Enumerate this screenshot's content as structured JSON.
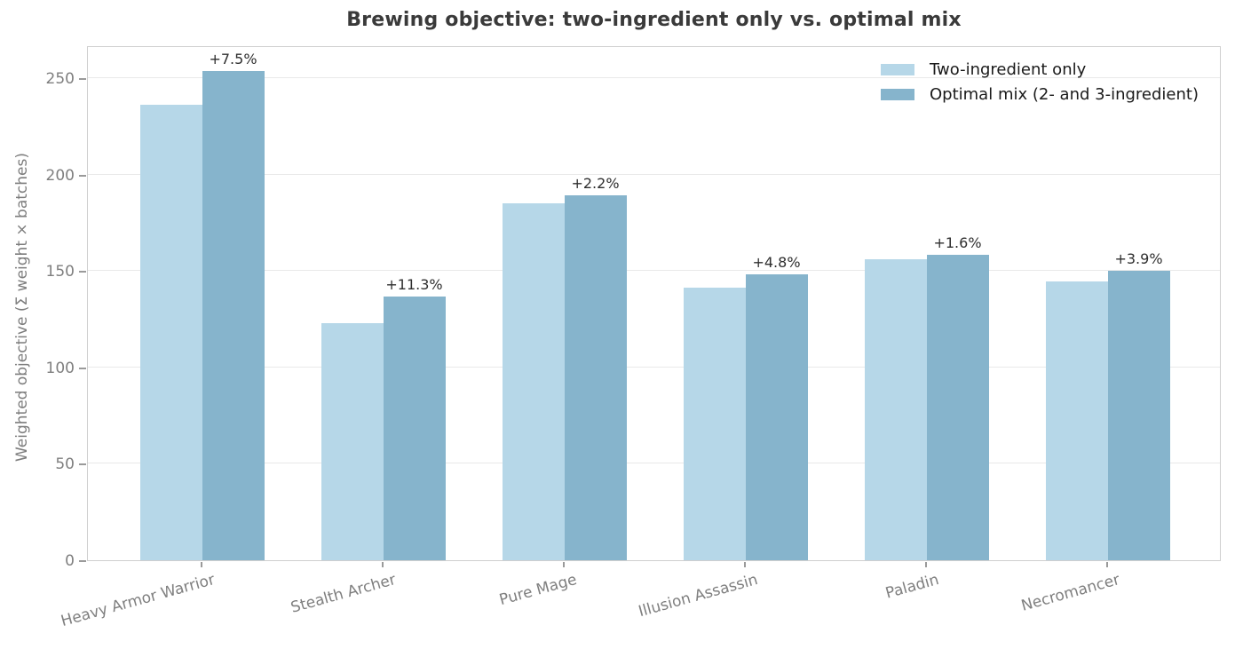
{
  "title": "Brewing objective: two-ingredient only vs. optimal mix",
  "chart_data": {
    "type": "bar",
    "title": "Brewing objective: two-ingredient only vs. optimal mix",
    "xlabel": "",
    "ylabel": "Weighted objective (Σ weight × batches)",
    "ylim": [
      0,
      267
    ],
    "yticks": [
      0,
      50,
      100,
      150,
      200,
      250
    ],
    "grid": "horizontal",
    "legend_position": "upper right",
    "categories": [
      "Heavy Armor Warrior",
      "Stealth Archer",
      "Pure Mage",
      "Illusion Assassin",
      "Paladin",
      "Necromancer"
    ],
    "series": [
      {
        "name": "Two-ingredient only",
        "color": "#b6d7e8",
        "values": [
          236,
          123,
          185,
          141.5,
          156,
          144.5
        ]
      },
      {
        "name": "Optimal mix (2- and 3-ingredient)",
        "color": "#86b4cc",
        "values": [
          253.7,
          136.9,
          189.1,
          148.3,
          158.5,
          150.1
        ]
      }
    ],
    "annotations": [
      "+7.5%",
      "+11.3%",
      "+2.2%",
      "+4.8%",
      "+1.6%",
      "+3.9%"
    ]
  },
  "colors": {
    "series_light": "#b6d7e8",
    "series_dark": "#86b4cc",
    "gridline": "#e9e9e9",
    "spine": "#cfcfcf",
    "tick_text": "#7f7f7f",
    "title_text": "#3a3a3a",
    "annotation_text": "#2e2e2e"
  }
}
